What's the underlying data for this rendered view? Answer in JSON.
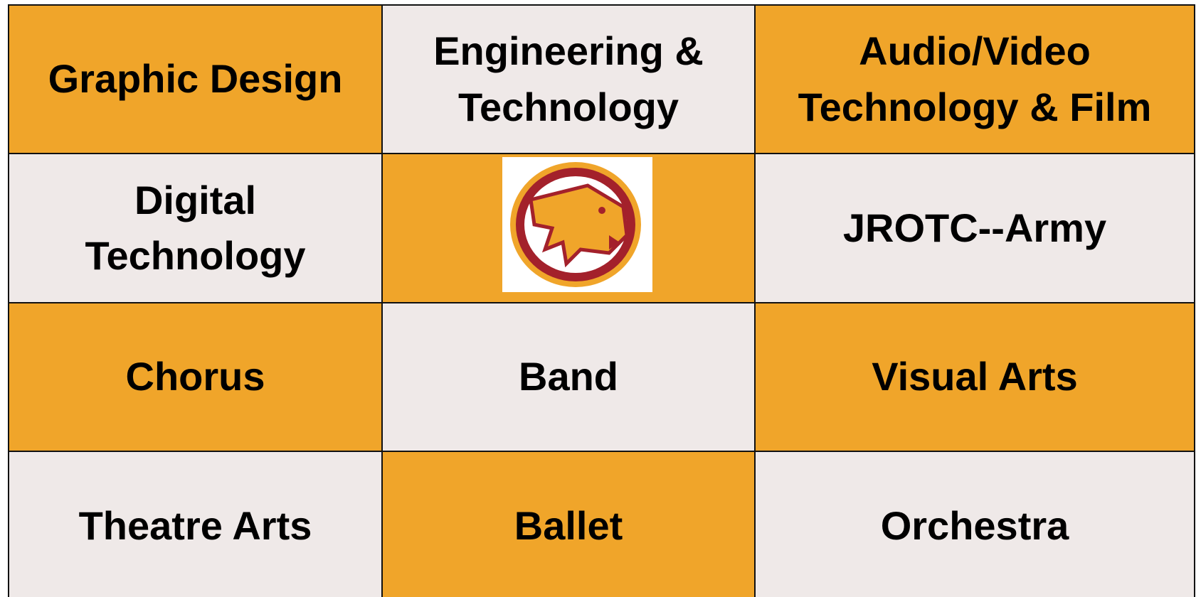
{
  "table": {
    "rows": [
      [
        {
          "lines": [
            "Graphic Design"
          ]
        },
        {
          "lines": [
            "Engineering &",
            "Technology"
          ]
        },
        {
          "lines": [
            "Audio/Video",
            "Technology & Film"
          ]
        }
      ],
      [
        {
          "lines": [
            "Digital",
            "Technology"
          ]
        },
        null,
        {
          "lines": [
            "JROTC--Army"
          ]
        }
      ],
      [
        {
          "lines": [
            "Chorus"
          ]
        },
        {
          "lines": [
            "Band"
          ]
        },
        {
          "lines": [
            "Visual Arts"
          ]
        }
      ],
      [
        {
          "lines": [
            "Theatre Arts"
          ]
        },
        {
          "lines": [
            "Ballet"
          ]
        },
        {
          "lines": [
            "Orchestra"
          ]
        }
      ]
    ]
  }
}
